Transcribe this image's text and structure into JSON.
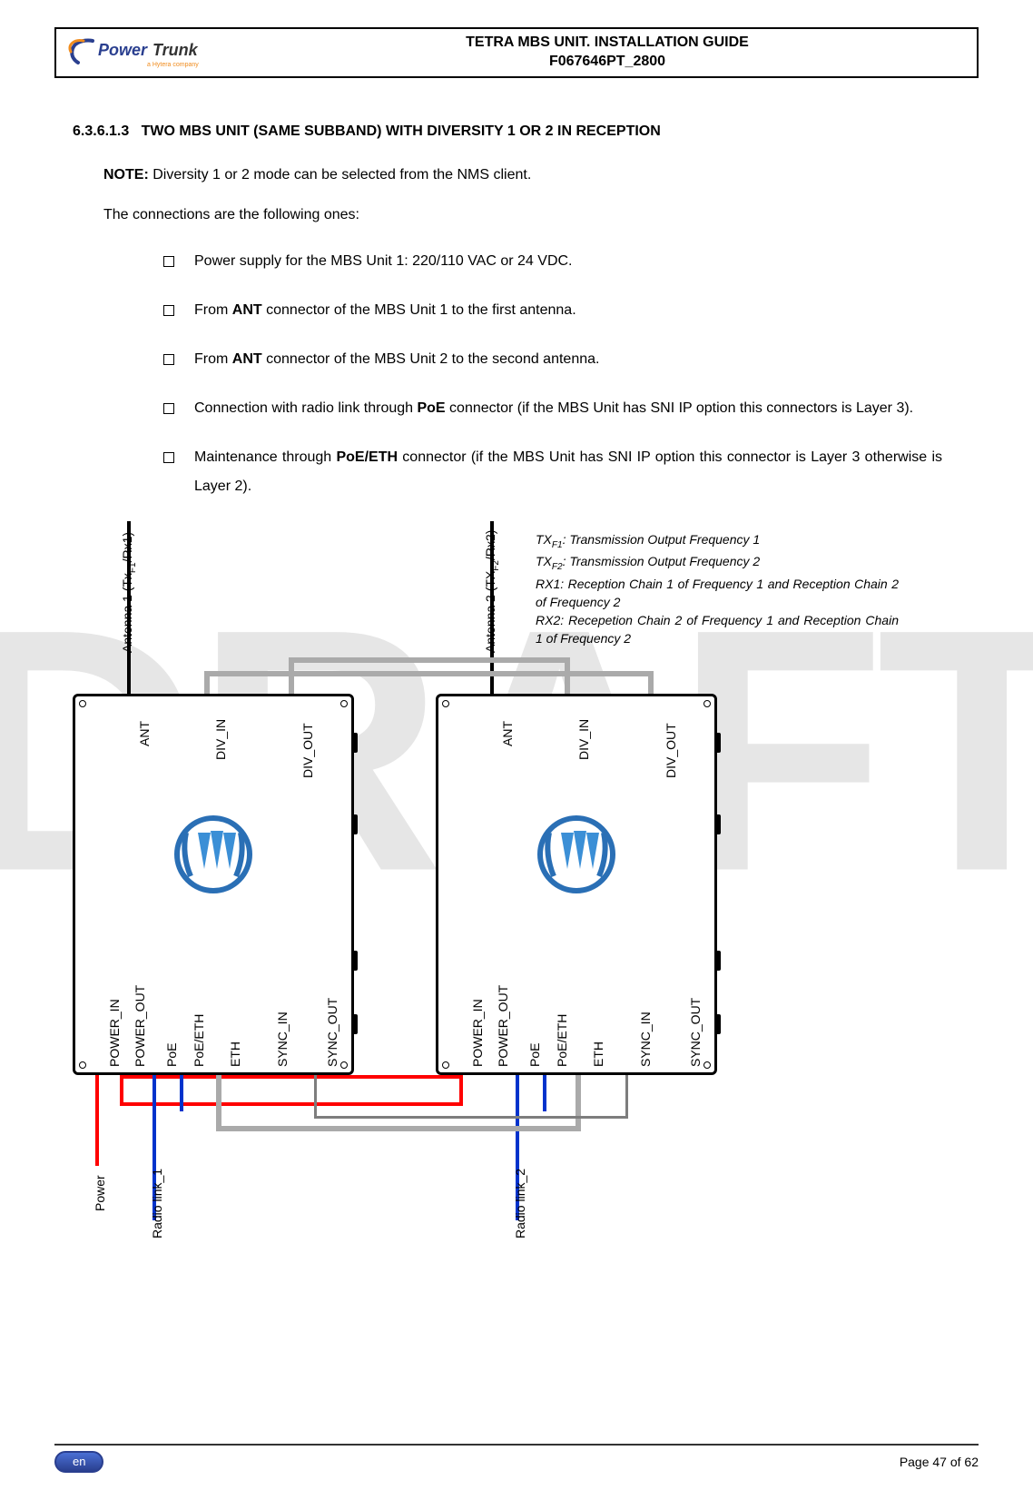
{
  "header": {
    "logo_text": "PowerTrunk",
    "logo_tagline": "a Hytera company",
    "title_line1": "TETRA MBS UNIT. INSTALLATION GUIDE",
    "title_line2": "F067646PT_2800"
  },
  "watermark": "DRAFT",
  "section": {
    "number": "6.3.6.1.3",
    "title": "TWO MBS UNIT (SAME SUBBAND) WITH DIVERSITY 1 OR 2 IN RECEPTION"
  },
  "note": {
    "label": "NOTE:",
    "text": "Diversity 1 or 2 mode can be selected from the NMS client."
  },
  "intro": "The connections are the following ones:",
  "bullets": [
    "Power supply for the MBS Unit 1: 220/110 VAC or 24 VDC.",
    "From <b>ANT</b> connector of the MBS Unit 1 to the first antenna.",
    "From <b>ANT</b> connector of the MBS Unit 2 to the second antenna.",
    "Connection with radio link through <b>PoE</b> connector (if the MBS Unit has SNI IP option this connectors is Layer 3).",
    "Maintenance through <b>PoE/ETH</b> connector (if the MBS Unit has SNI IP option this connector is Layer 3 otherwise is Layer 2)."
  ],
  "diagram": {
    "antenna1_label": "Antenna 1 (Tx",
    "antenna1_sub": "F1",
    "antenna1_tail": "/Rx1)",
    "antenna2_label": "Antenna 2 (TX",
    "antenna2_sub": "F2",
    "antenna2_tail": "/Rx2)",
    "legend": {
      "l1a": "TX",
      "l1s": "F1",
      "l1b": ": Transmission Output Frequency 1",
      "l2a": "TX",
      "l2s": "F2",
      "l2b": ": Transmission Output Frequency 2",
      "l3": "RX1: Reception Chain 1 of Frequency 1 and Reception Chain 2 of Frequency 2",
      "l4": "RX2: Recepetion Chain 2 of Frequency 1 and Reception Chain 1 of Frequency 2"
    },
    "ports_left": {
      "ant": "ANT",
      "div_in": "DIV_IN",
      "div_out": "DIV_OUT",
      "power_in": "POWER_IN",
      "power_out": "POWER_OUT",
      "poe": "PoE",
      "poe_eth": "PoE/ETH",
      "eth": "ETH",
      "sync_in": "SYNC_IN",
      "sync_out": "SYNC_OUT"
    },
    "ports_right": {
      "ant": "ANT",
      "div_in": "DIV_IN",
      "div_out": "DIV_OUT",
      "power_in": "POWER_IN",
      "power_out": "POWER_OUT",
      "poe": "PoE",
      "poe_eth": "PoE/ETH",
      "eth": "ETH",
      "sync_in": "SYNC_IN",
      "sync_out": "SYNC_OUT"
    },
    "bottom_labels": {
      "power": "Power",
      "radio1": "Radio link_1",
      "radio2": "Radio link_2"
    },
    "colors": {
      "power": "#ff0000",
      "link": "#0033cc",
      "eth": "#aaaaaa",
      "sync": "#7d7d7d",
      "antenna": "#000000",
      "unit_border": "#000000",
      "logo_ring": "#2a6fb5",
      "logo_tri": "#3b8fd6"
    }
  },
  "footer": {
    "lang": "en",
    "page": "Page 47 of 62"
  }
}
